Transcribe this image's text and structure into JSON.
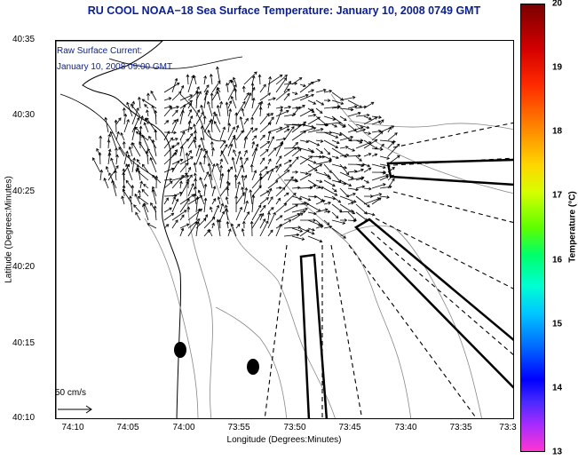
{
  "title": "RU COOL  NOAA−18  Sea Surface Temperature:  January 10, 2008 0749 GMT",
  "subtitle_line1": "Raw Surface Current:",
  "subtitle_line2": "January 10, 2008 09:00 GMT",
  "y_axis": {
    "title": "Latitude (Degrees:Minutes)",
    "ticks": [
      "40:35",
      "40:30",
      "40:25",
      "40:20",
      "40:15",
      "40:10"
    ]
  },
  "x_axis": {
    "title": "Longitude (Degrees:Minutes)",
    "ticks": [
      "74:10",
      "74:05",
      "74:00",
      "73:55",
      "73:50",
      "73:45",
      "73:40",
      "73:35",
      "73:3"
    ]
  },
  "scale_label": "50 cm/s",
  "colorbar": {
    "title": "Temperature (°C)",
    "ticks": [
      "20",
      "19",
      "18",
      "17",
      "16",
      "15",
      "14",
      "13"
    ],
    "colors": {
      "high": "#7a0000",
      "mid": "#5dff00",
      "low": "#ff35d2"
    }
  },
  "colors": {
    "title": "#0a1e96",
    "coast": "#000000",
    "bathymetry": "#888888"
  }
}
